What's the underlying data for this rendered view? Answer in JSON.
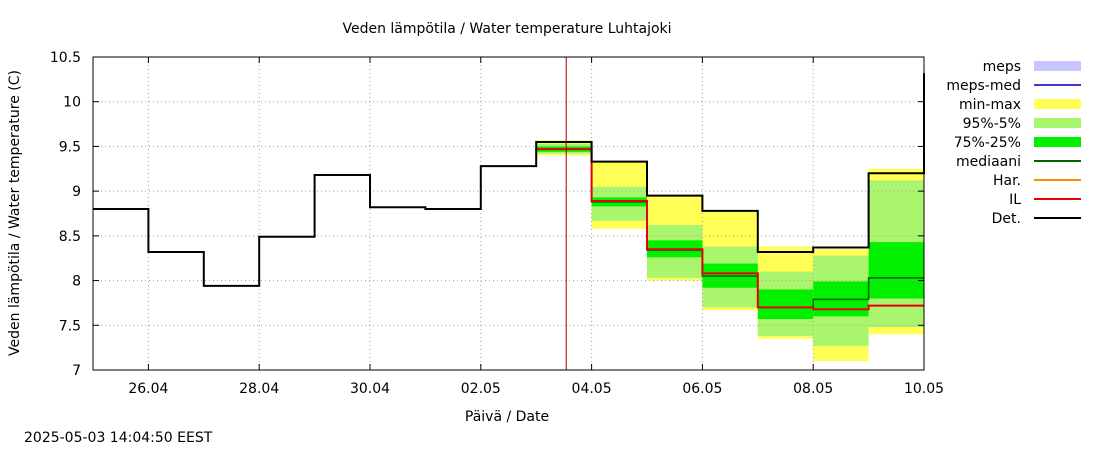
{
  "chart_data": {
    "type": "line",
    "title": "Veden lämpötila / Water temperature Luhtajoki",
    "xlabel": "Päivä / Date",
    "ylabel": "Veden lämpötila / Water temperature (C)",
    "timestamp": "2025-05-03 14:04:50 EEST",
    "xlim": [
      "2025-04-25",
      "2025-05-10"
    ],
    "ylim": [
      7,
      10.5
    ],
    "grid": true,
    "legend_position": "right",
    "current_time": "2025-05-03 13:00",
    "x_ticks": [
      {
        "date": "2025-04-26",
        "label": "26.04"
      },
      {
        "date": "2025-04-28",
        "label": "28.04"
      },
      {
        "date": "2025-04-30",
        "label": "30.04"
      },
      {
        "date": "2025-05-02",
        "label": "02.05"
      },
      {
        "date": "2025-05-04",
        "label": "04.05"
      },
      {
        "date": "2025-05-06",
        "label": "06.05"
      },
      {
        "date": "2025-05-08",
        "label": "08.05"
      },
      {
        "date": "2025-05-10",
        "label": "10.05"
      }
    ],
    "y_ticks": [
      7,
      7.5,
      8,
      8.5,
      9,
      9.5,
      10,
      10.5
    ],
    "y_tick_labels": [
      "7",
      "7.5",
      "8",
      "8.5",
      "9",
      "9.5",
      "10",
      "10.5"
    ],
    "legend": [
      {
        "label": "meps",
        "color": "#c8c8ff",
        "kind": "box"
      },
      {
        "label": "meps-med",
        "color": "#3c3cc8",
        "kind": "line"
      },
      {
        "label": "min-max",
        "color": "#ffff55",
        "kind": "box"
      },
      {
        "label": "95%-5%",
        "color": "#aaf56e",
        "kind": "box"
      },
      {
        "label": "75%-25%",
        "color": "#00f000",
        "kind": "box"
      },
      {
        "label": "mediaani",
        "color": "#006400",
        "kind": "line"
      },
      {
        "label": "Har.",
        "color": "#ff8c00",
        "kind": "line"
      },
      {
        "label": "IL",
        "color": "#e60000",
        "kind": "line"
      },
      {
        "label": "Det.",
        "color": "#000000",
        "kind": "line"
      }
    ],
    "daily_values": [
      {
        "day": "2025-04-25",
        "det": 8.8
      },
      {
        "day": "2025-04-26",
        "det": 8.32
      },
      {
        "day": "2025-04-27",
        "det": 7.94
      },
      {
        "day": "2025-04-28",
        "det": 8.49
      },
      {
        "day": "2025-04-29",
        "det": 9.18
      },
      {
        "day": "2025-04-30",
        "det": 8.82
      },
      {
        "day": "2025-05-01",
        "det": 8.8
      },
      {
        "day": "2025-05-02",
        "det": 9.28
      }
    ],
    "forecast": [
      {
        "day": "2025-05-03",
        "min": 9.4,
        "max": 9.57,
        "p5": 9.42,
        "p95": 9.53,
        "p25": 9.44,
        "p75": 9.5,
        "median": 9.47,
        "il": 9.47,
        "det": 9.55
      },
      {
        "day": "2025-05-04",
        "min": 8.58,
        "max": 9.33,
        "p5": 8.67,
        "p95": 9.05,
        "p25": 8.83,
        "p75": 8.93,
        "median": 8.88,
        "il": 8.89,
        "det": 9.33
      },
      {
        "day": "2025-05-05",
        "min": 8.0,
        "max": 8.95,
        "p5": 8.03,
        "p95": 8.62,
        "p25": 8.26,
        "p75": 8.45,
        "median": 8.34,
        "il": 8.35,
        "det": 8.95
      },
      {
        "day": "2025-05-06",
        "min": 7.67,
        "max": 8.78,
        "p5": 7.7,
        "p95": 8.38,
        "p25": 7.92,
        "p75": 8.19,
        "median": 8.05,
        "il": 8.08,
        "det": 8.78
      },
      {
        "day": "2025-05-07",
        "min": 7.35,
        "max": 8.38,
        "p5": 7.38,
        "p95": 8.1,
        "p25": 7.57,
        "p75": 7.9,
        "median": 7.7,
        "il": 7.7,
        "det": 8.32
      },
      {
        "day": "2025-05-08",
        "min": 7.1,
        "max": 8.35,
        "p5": 7.27,
        "p95": 8.28,
        "p25": 7.6,
        "p75": 7.99,
        "median": 7.79,
        "il": 7.68,
        "det": 8.37
      },
      {
        "day": "2025-05-09",
        "min": 7.4,
        "max": 9.25,
        "p5": 7.48,
        "p95": 9.12,
        "p25": 7.8,
        "p75": 8.43,
        "median": 8.03,
        "il": 7.72,
        "det": 9.2
      }
    ],
    "det_final_value": 10.32
  }
}
